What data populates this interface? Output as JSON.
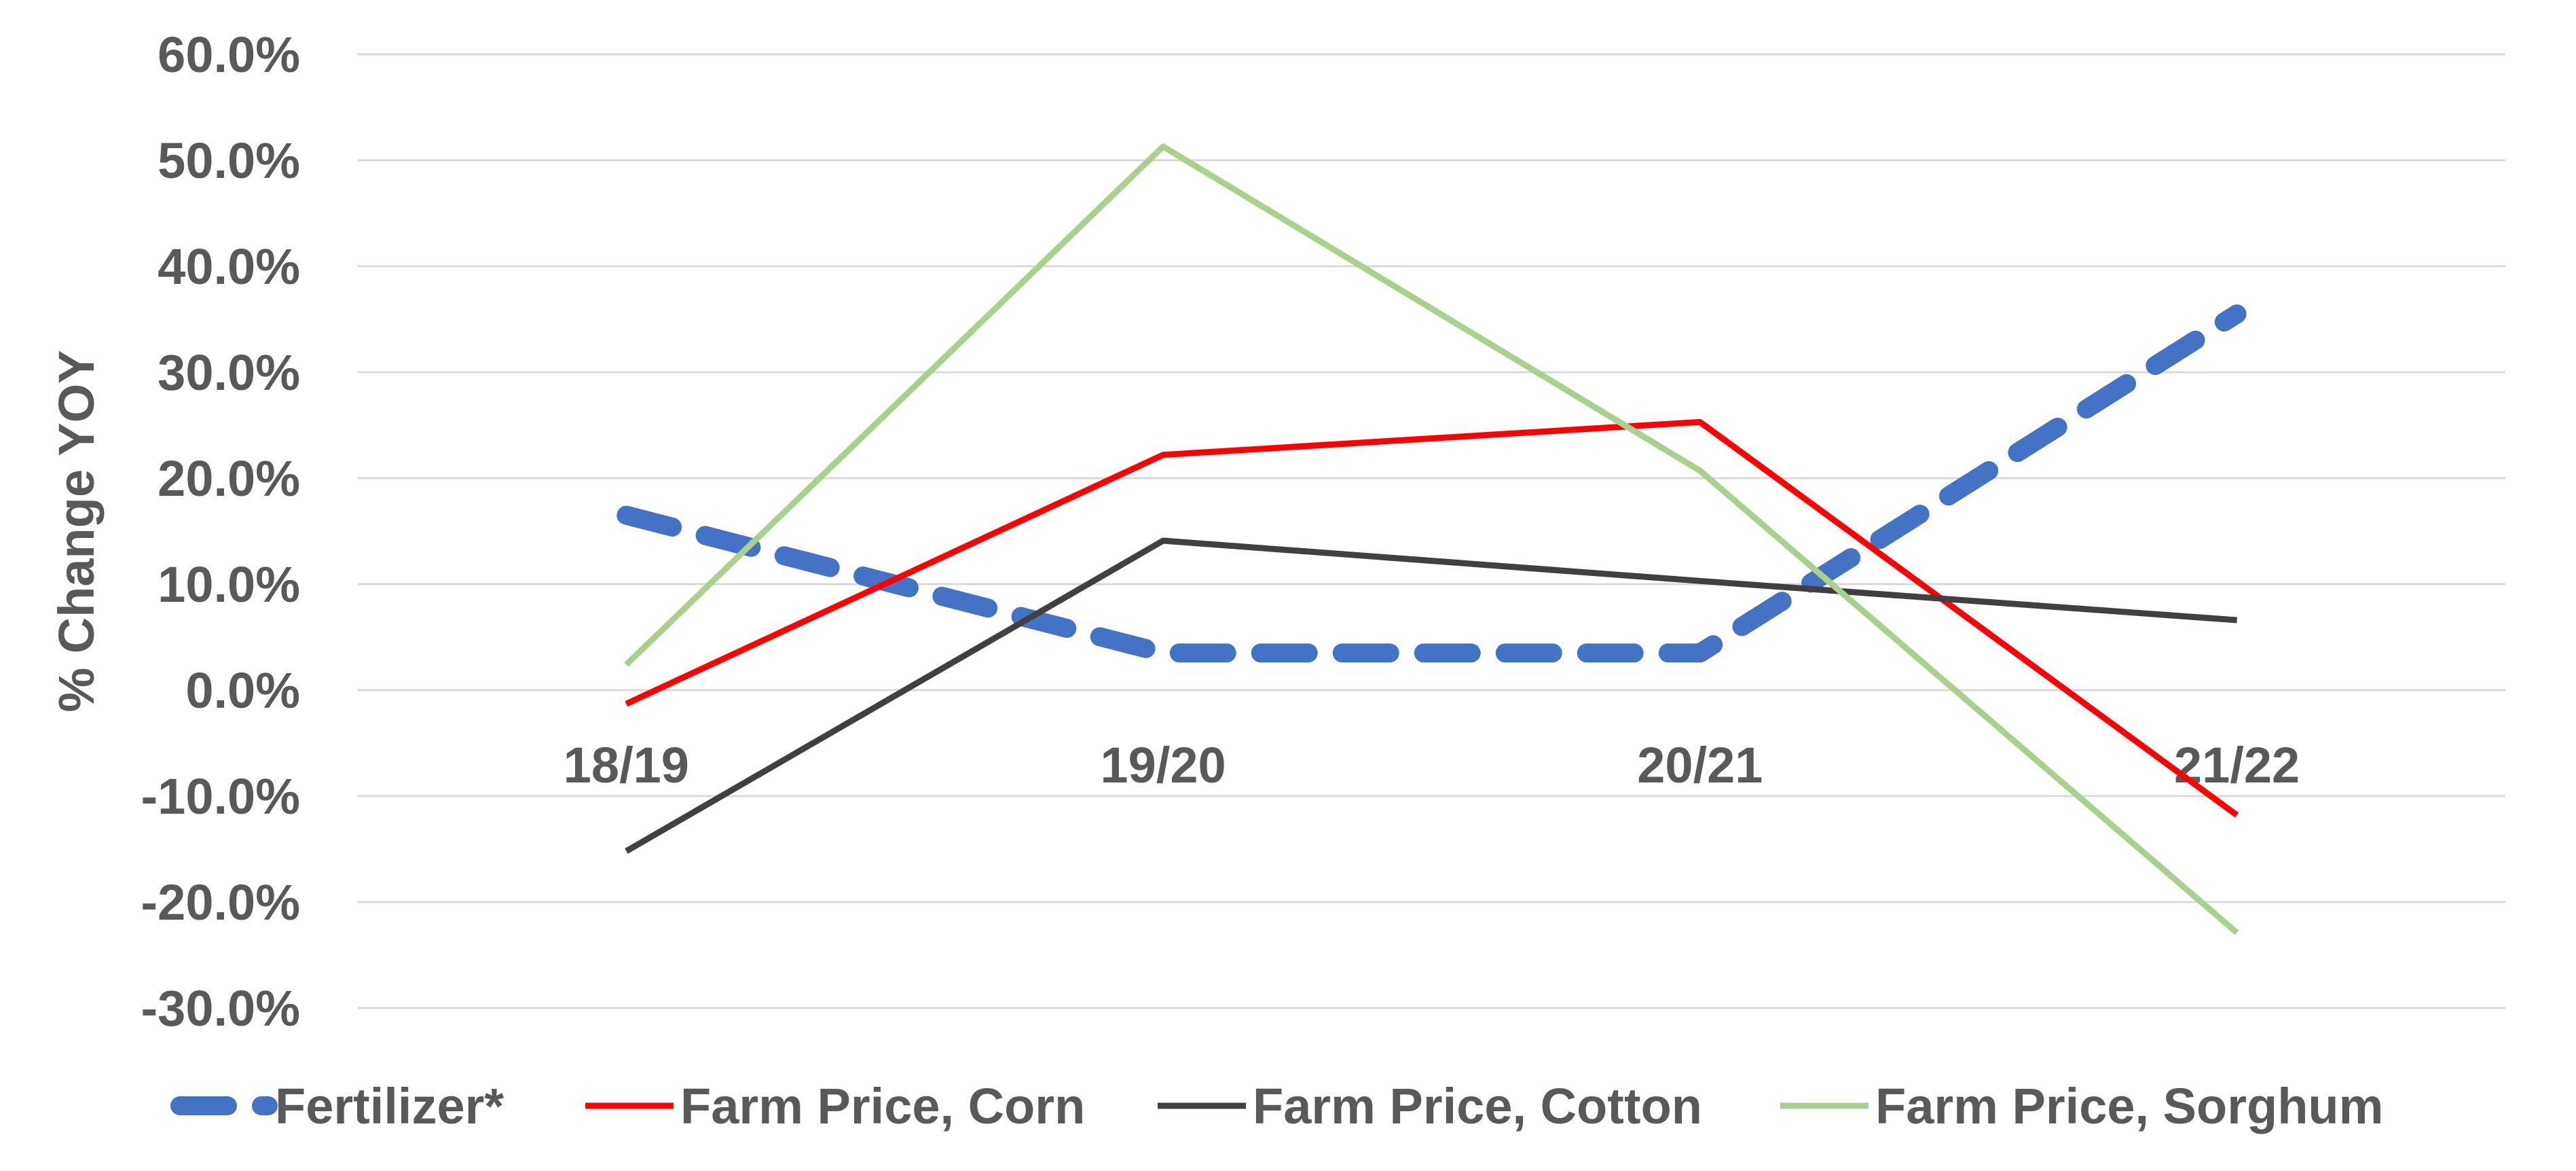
{
  "chart_data": {
    "type": "line",
    "title": "",
    "xlabel": "",
    "ylabel": "% Change YOY",
    "categories": [
      "18/19",
      "19/20",
      "20/21",
      "21/22"
    ],
    "ylim": [
      -30,
      60
    ],
    "ytick_step": 10,
    "ytick_labels": [
      "-30.0%",
      "-20.0%",
      "-10.0%",
      "0.0%",
      "10.0%",
      "20.0%",
      "30.0%",
      "40.0%",
      "50.0%",
      "60.0%"
    ],
    "grid": true,
    "legend_position": "bottom",
    "series": [
      {
        "name": "Fertilizer*",
        "values": [
          16.5,
          3.5,
          3.5,
          35.5
        ],
        "color": "#4472c4",
        "style": "dashed"
      },
      {
        "name": "Farm Price, Corn",
        "values": [
          -1.3,
          22.2,
          25.3,
          -11.8
        ],
        "color": "#ff0000",
        "style": "solid"
      },
      {
        "name": "Farm Price, Cotton",
        "values": [
          -15.2,
          14.1,
          10.3,
          6.6
        ],
        "color": "#404040",
        "style": "solid"
      },
      {
        "name": "Farm Price, Sorghum",
        "values": [
          2.4,
          51.3,
          20.7,
          -22.9
        ],
        "color": "#a9d18e",
        "style": "solid"
      }
    ]
  }
}
